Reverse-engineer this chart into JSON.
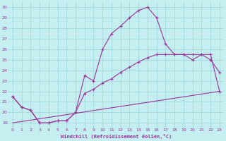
{
  "xlabel": "Windchill (Refroidissement éolien,°C)",
  "xlim": [
    -0.5,
    23.5
  ],
  "ylim": [
    18.5,
    30.5
  ],
  "yticks": [
    19,
    20,
    21,
    22,
    23,
    24,
    25,
    26,
    27,
    28,
    29,
    30
  ],
  "xticks": [
    0,
    1,
    2,
    3,
    4,
    5,
    6,
    7,
    8,
    9,
    10,
    11,
    12,
    13,
    14,
    15,
    16,
    17,
    18,
    19,
    20,
    21,
    22,
    23
  ],
  "bg_color": "#c5eef0",
  "grid_color": "#a0d8dc",
  "line_color": "#993399",
  "line1": {
    "x": [
      0,
      1,
      2,
      3,
      4,
      5,
      6,
      7,
      8,
      9,
      10,
      11,
      12,
      13,
      14,
      15,
      16,
      17,
      18,
      19,
      20,
      21,
      22,
      23
    ],
    "y": [
      21.5,
      20.5,
      20.2,
      19.0,
      19.0,
      19.2,
      19.2,
      20.0,
      23.5,
      23.0,
      26.0,
      27.5,
      28.2,
      29.0,
      29.7,
      30.0,
      29.0,
      26.5,
      25.5,
      25.5,
      25.0,
      25.5,
      25.0,
      23.8
    ]
  },
  "line2": {
    "x": [
      0,
      1,
      2,
      3,
      4,
      5,
      6,
      7,
      8,
      9,
      10,
      11,
      12,
      13,
      14,
      15,
      16,
      17,
      18,
      19,
      20,
      21,
      22,
      23
    ],
    "y": [
      21.5,
      20.5,
      20.2,
      19.0,
      19.0,
      19.2,
      19.2,
      20.0,
      21.8,
      22.2,
      22.8,
      23.2,
      23.8,
      24.3,
      24.8,
      25.2,
      25.5,
      25.5,
      25.5,
      25.5,
      25.5,
      25.5,
      25.5,
      22.0
    ]
  },
  "line3": {
    "x": [
      0,
      23
    ],
    "y": [
      19.0,
      22.0
    ]
  }
}
